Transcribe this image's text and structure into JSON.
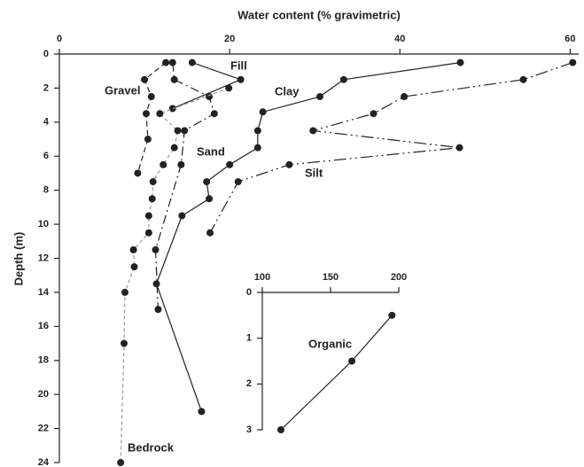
{
  "chart_data": [
    {
      "type": "line",
      "xlabel": "Water content (% gravimetric)",
      "ylabel": "Depth (m)",
      "xaxis_position": "top",
      "y_inverted": true,
      "xlim": [
        0,
        61
      ],
      "xticks": [
        0,
        20,
        40,
        60
      ],
      "ylim": [
        0,
        24
      ],
      "yticks": [
        0,
        2,
        4,
        6,
        8,
        10,
        12,
        14,
        16,
        18,
        20,
        22,
        24
      ],
      "series": [
        {
          "name": "Fill",
          "color": "#222222",
          "dash": "solid",
          "x": [
            15.6,
            21.3,
            13.3
          ],
          "values": [
            0.5,
            1.5,
            3.2
          ]
        },
        {
          "name": "Gravel",
          "color": "#222222",
          "dash": "dashed",
          "x": [
            12.5,
            10.0,
            10.8,
            10.2,
            10.4,
            9.2
          ],
          "values": [
            0.5,
            1.5,
            2.5,
            3.5,
            5.0,
            7.0
          ]
        },
        {
          "name": "Clay",
          "color": "#222222",
          "dash": "solid",
          "x": [
            47.1,
            33.4,
            30.6,
            23.9,
            23.3,
            23.3,
            20.0,
            17.3,
            17.6,
            14.4,
            11.4,
            16.7
          ],
          "values": [
            0.5,
            1.5,
            2.5,
            3.4,
            4.5,
            5.5,
            6.5,
            7.5,
            8.5,
            9.5,
            13.5,
            21.0
          ]
        },
        {
          "name": "Sand",
          "color": "#222222",
          "dash": "dashdot",
          "x": [
            13.3,
            13.5,
            17.6,
            18.2,
            14.7,
            14.3,
            11.3,
            11.6
          ],
          "values": [
            0.5,
            1.5,
            2.5,
            3.5,
            4.5,
            6.5,
            11.5,
            15.0
          ]
        },
        {
          "name": "Silt",
          "color": "#222222",
          "dash": "dashdotdot",
          "x": [
            60.3,
            54.5,
            40.5,
            36.9,
            29.8,
            47.0,
            27.0,
            21.0,
            17.7
          ],
          "values": [
            0.5,
            1.5,
            2.5,
            3.5,
            4.5,
            5.5,
            6.5,
            7.5,
            10.5
          ]
        },
        {
          "name": "Bedrock",
          "color": "#999999",
          "dash": "dotted",
          "x": [
            19.9,
            11.8,
            13.9,
            13.5,
            12.2,
            11.0,
            10.9,
            10.5,
            10.5,
            8.7,
            8.8,
            7.7,
            7.6,
            7.2
          ],
          "values": [
            2.0,
            3.5,
            4.5,
            5.5,
            6.5,
            7.5,
            8.5,
            9.5,
            10.5,
            11.5,
            12.5,
            14.0,
            17.0,
            24.0
          ]
        }
      ]
    },
    {
      "type": "line",
      "xaxis_position": "top",
      "y_inverted": true,
      "xlim": [
        100,
        200
      ],
      "xticks": [
        100,
        150,
        200
      ],
      "ylim": [
        0,
        3
      ],
      "yticks": [
        0,
        1,
        2,
        3
      ],
      "series": [
        {
          "name": "Organic",
          "color": "#222222",
          "dash": "solid",
          "x": [
            195,
            165.6,
            113.6
          ],
          "values": [
            0.5,
            1.5,
            3.0
          ]
        }
      ]
    }
  ]
}
